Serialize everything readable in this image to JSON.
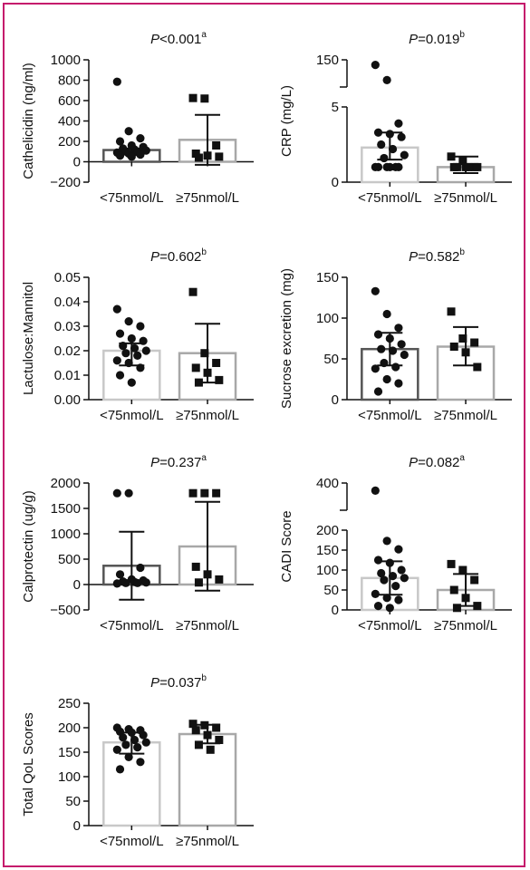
{
  "colors": {
    "frame": "#c51a6c",
    "bar_low": "#c8c8c8",
    "bar_high": "#a8a8a8",
    "bar_dark": "#555555",
    "ink": "#111111"
  },
  "chart_data": [
    {
      "type": "bar",
      "panel": "cathelicidin",
      "ylabel": "Cathelicidin (ng/ml)",
      "yticks": [
        -200,
        0,
        200,
        400,
        600,
        800,
        1000
      ],
      "ylim": [
        -200,
        1000
      ],
      "zero_line": true,
      "categories": [
        "<75nmol/L",
        "≥75nmol/L"
      ],
      "annotation": {
        "p_text": "=<0.001",
        "p_prefix": "P",
        "p_text_main": "<0.001",
        "superscript": "a"
      },
      "bar_style": [
        "dark",
        "light"
      ],
      "markers": [
        "circle",
        "square"
      ],
      "values": [
        115,
        215
      ],
      "error": [
        [
          105,
          130
        ],
        [
          -30,
          460
        ]
      ],
      "points": [
        [
          785,
          300,
          230,
          200,
          160,
          145,
          130,
          120,
          110,
          100,
          95,
          90,
          80,
          70,
          60,
          50
        ],
        [
          625,
          620,
          160,
          80,
          60,
          50,
          40
        ]
      ]
    },
    {
      "type": "bar",
      "panel": "crp",
      "ylabel": "CRP (mg/L)",
      "broken_axis": true,
      "yticks_lower": [
        0,
        5
      ],
      "yticks_upper": [
        150
      ],
      "ylim_lower": [
        0,
        5
      ],
      "ylim_upper": [
        100,
        150
      ],
      "categories": [
        "<75nmol/L",
        "≥75nmol/L"
      ],
      "annotation": {
        "p_prefix": "P",
        "p_text_main": "=0.019",
        "superscript": "b"
      },
      "bar_style": [
        "light",
        "light"
      ],
      "markers": [
        "circle",
        "square"
      ],
      "values": [
        2.3,
        1.0
      ],
      "error": [
        [
          1.5,
          3.3
        ],
        [
          0.6,
          1.7
        ]
      ],
      "points": [
        [
          140,
          110,
          3.9,
          3.3,
          3.2,
          3.0,
          2.5,
          2.2,
          1.8,
          1.6,
          1.0,
          1.0,
          1.0,
          1.0,
          1.0,
          1.0
        ],
        [
          1.7,
          1.4,
          1.0,
          1.0,
          1.0,
          1.0,
          1.0,
          1.0
        ]
      ]
    },
    {
      "type": "bar",
      "panel": "lactulose",
      "ylabel": "Lactulose:Mannitol",
      "yticks": [
        0.0,
        0.01,
        0.02,
        0.03,
        0.04,
        0.05
      ],
      "ytick_labels": [
        "0.00",
        "0.01",
        "0.02",
        "0.03",
        "0.04",
        "0.05"
      ],
      "ylim": [
        0,
        0.05
      ],
      "categories": [
        "<75nmol/L",
        "≥75nmol/L"
      ],
      "annotation": {
        "p_prefix": "P",
        "p_text_main": "=0.602",
        "superscript": "b"
      },
      "bar_style": [
        "light",
        "light"
      ],
      "markers": [
        "circle",
        "square"
      ],
      "values": [
        0.02,
        0.019
      ],
      "error": [
        [
          0.014,
          0.023
        ],
        [
          0.007,
          0.031
        ]
      ],
      "points": [
        [
          0.037,
          0.032,
          0.03,
          0.027,
          0.025,
          0.024,
          0.022,
          0.021,
          0.02,
          0.019,
          0.018,
          0.016,
          0.015,
          0.013,
          0.01,
          0.007
        ],
        [
          0.044,
          0.019,
          0.015,
          0.013,
          0.011,
          0.008,
          0.007
        ]
      ]
    },
    {
      "type": "bar",
      "panel": "sucrose",
      "ylabel": "Sucrose excretion (mg)",
      "yticks": [
        0,
        50,
        100,
        150
      ],
      "ylim": [
        0,
        150
      ],
      "categories": [
        "<75nmol/L",
        "≥75nmol/L"
      ],
      "annotation": {
        "p_prefix": "P",
        "p_text_main": "=0.582",
        "superscript": "b"
      },
      "bar_style": [
        "dark",
        "light"
      ],
      "markers": [
        "circle",
        "square"
      ],
      "values": [
        62,
        65
      ],
      "error": [
        [
          42,
          82
        ],
        [
          42,
          89
        ]
      ],
      "points": [
        [
          133,
          105,
          88,
          80,
          75,
          68,
          62,
          60,
          55,
          45,
          40,
          38,
          25,
          20,
          10
        ],
        [
          108,
          75,
          70,
          65,
          58,
          40
        ]
      ]
    },
    {
      "type": "bar",
      "panel": "calprotectin",
      "ylabel": "Calprotectin (ug/g)",
      "yticks": [
        -500,
        0,
        500,
        1000,
        1500,
        2000
      ],
      "ylim": [
        -500,
        2000
      ],
      "zero_line": true,
      "categories": [
        "<75nmol/L",
        "≥75nmol/L"
      ],
      "annotation": {
        "p_prefix": "P",
        "p_text_main": "=0.237",
        "superscript": "a"
      },
      "bar_style": [
        "dark",
        "light"
      ],
      "markers": [
        "circle",
        "square"
      ],
      "values": [
        370,
        750
      ],
      "error": [
        [
          -300,
          1040
        ],
        [
          -120,
          1630
        ]
      ],
      "points": [
        [
          1800,
          1800,
          330,
          200,
          100,
          80,
          60,
          50,
          40,
          30,
          30,
          20
        ],
        [
          1800,
          1800,
          1800,
          350,
          200,
          100,
          40
        ]
      ]
    },
    {
      "type": "bar",
      "panel": "cadi",
      "ylabel": "CADI Score",
      "broken_axis": true,
      "yticks_lower": [
        0,
        50,
        100,
        150,
        200
      ],
      "yticks_upper": [
        400
      ],
      "ylim_lower": [
        0,
        200
      ],
      "ylim_upper": [
        300,
        400
      ],
      "categories": [
        "<75nmol/L",
        "≥75nmol/L"
      ],
      "annotation": {
        "p_prefix": "P",
        "p_text_main": "=0.082",
        "superscript": "a"
      },
      "bar_style": [
        "light",
        "light"
      ],
      "markers": [
        "circle",
        "square"
      ],
      "values": [
        80,
        50
      ],
      "error": [
        [
          38,
          122
        ],
        [
          10,
          90
        ]
      ],
      "points": [
        [
          370,
          173,
          152,
          125,
          118,
          100,
          92,
          85,
          80,
          75,
          60,
          40,
          30,
          25,
          10,
          5
        ],
        [
          115,
          100,
          75,
          50,
          30,
          10,
          5
        ]
      ]
    },
    {
      "type": "bar",
      "panel": "qol",
      "ylabel": "Total QoL Scores",
      "yticks": [
        0,
        50,
        100,
        150,
        200,
        250
      ],
      "ylim": [
        0,
        250
      ],
      "categories": [
        "<75nmol/L",
        "≥75nmol/L"
      ],
      "annotation": {
        "p_prefix": "P",
        "p_text_main": "=0.037",
        "superscript": "b"
      },
      "bar_style": [
        "light",
        "light"
      ],
      "markers": [
        "circle",
        "square"
      ],
      "values": [
        170,
        187
      ],
      "error": [
        [
          147,
          190
        ],
        [
          168,
          206
        ]
      ],
      "points": [
        [
          200,
          197,
          195,
          192,
          190,
          185,
          180,
          175,
          170,
          165,
          160,
          155,
          140,
          130,
          115
        ],
        [
          208,
          205,
          200,
          195,
          185,
          175,
          165,
          155
        ]
      ]
    }
  ]
}
